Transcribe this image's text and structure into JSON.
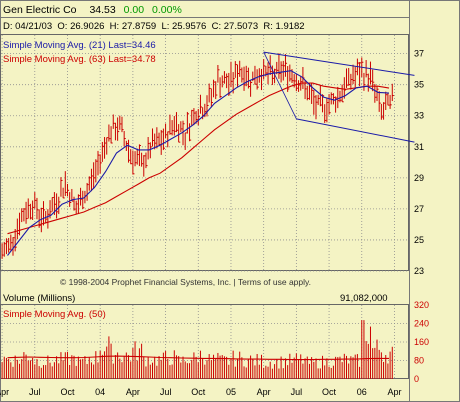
{
  "header": {
    "company": "Gen Electric Co",
    "last": "34.53",
    "change": "0.00",
    "change_pct": "0.00%",
    "quote_line": "D: 04/21/03  O: 26.9026  H: 27.8759  L: 25.9576  C: 27.5073  R: 1.9182"
  },
  "legend": {
    "sma21": "Simple Moving Avg. (21) Last=34.46",
    "sma63": "Simple Moving Avg. (63) Last=34.78"
  },
  "copyright": "© 1998-2004 Prophet Financial Systems, Inc.  |  Terms of use apply.",
  "volume_panel": {
    "title": "Volume (Millions)",
    "sma_label": "Simple Moving Avg. (50)",
    "last_value": "91,082,000"
  },
  "colors": {
    "background": "#f4f3c4",
    "price_bars": "#cc0000",
    "sma21": "#1a1aa8",
    "sma63": "#cc0000",
    "channel": "#1a1aa8",
    "volume_bars": "#cc0000",
    "volume_sma": "#cc0000",
    "text_blue": "#1a1aa8",
    "text_red": "#cc0000",
    "grid": "#8e8e8e"
  },
  "chart_data": [
    {
      "type": "ohlc",
      "title": "Gen Electric Co",
      "y_ticks": [
        23,
        25,
        27,
        29,
        31,
        33,
        35,
        37
      ],
      "ylim": [
        23,
        38.2
      ],
      "x_tick_labels": [
        "Apr",
        "Jul",
        "Oct",
        "04",
        "Apr",
        "Jul",
        "Oct",
        "05",
        "Apr",
        "Jul",
        "Oct",
        "06",
        "Apr"
      ],
      "grid": true,
      "x": [
        "2003-04",
        "2003-05",
        "2003-06",
        "2003-07",
        "2003-08",
        "2003-09",
        "2003-10",
        "2003-11",
        "2003-12",
        "2004-01",
        "2004-02",
        "2004-03",
        "2004-04",
        "2004-05",
        "2004-06",
        "2004-07",
        "2004-08",
        "2004-09",
        "2004-10",
        "2004-11",
        "2004-12",
        "2005-01",
        "2005-02",
        "2005-03",
        "2005-04",
        "2005-05",
        "2005-06",
        "2005-07",
        "2005-08",
        "2005-09",
        "2005-10",
        "2005-11",
        "2005-12",
        "2006-01",
        "2006-02",
        "2006-03"
      ],
      "close": [
        24.8,
        26.5,
        27.4,
        26.3,
        27.3,
        28.6,
        27.0,
        28.2,
        29.8,
        31.9,
        32.3,
        30.5,
        29.8,
        31.1,
        31.4,
        32.6,
        31.9,
        33.3,
        33.7,
        35.3,
        35.1,
        36.0,
        35.3,
        35.8,
        35.6,
        36.0,
        35.6,
        34.8,
        33.6,
        33.7,
        34.2,
        35.3,
        35.8,
        35.5,
        33.2,
        33.9
      ],
      "sma21": [
        24.0,
        24.9,
        25.8,
        26.3,
        26.6,
        27.3,
        27.6,
        27.7,
        28.4,
        29.4,
        30.6,
        31.1,
        30.8,
        30.8,
        31.1,
        31.5,
        31.9,
        32.4,
        33.0,
        33.8,
        34.3,
        34.8,
        35.2,
        35.5,
        35.7,
        35.8,
        35.9,
        35.5,
        34.8,
        34.2,
        34.0,
        34.3,
        34.8,
        34.9,
        34.5,
        34.46
      ],
      "sma63": [
        25.4,
        25.6,
        25.8,
        26.0,
        26.2,
        26.4,
        26.6,
        26.8,
        27.1,
        27.4,
        27.8,
        28.2,
        28.6,
        29.0,
        29.3,
        29.8,
        30.3,
        30.9,
        31.5,
        32.1,
        32.6,
        33.1,
        33.5,
        33.9,
        34.3,
        34.6,
        34.9,
        35.1,
        35.1,
        34.9,
        34.8,
        34.7,
        34.8,
        34.9,
        34.9,
        34.78
      ],
      "channel_upper": {
        "from": [
          "2005-04",
          37.1
        ],
        "to": [
          "2006-04",
          35.6
        ]
      },
      "channel_lower": {
        "from": [
          "2005-07",
          32.8
        ],
        "to": [
          "2006-04",
          31.3
        ]
      }
    },
    {
      "type": "bar",
      "title": "Volume (Millions)",
      "y_ticks": [
        0,
        40,
        80,
        120,
        160,
        200,
        240,
        280,
        320
      ],
      "ylim": [
        0,
        320
      ],
      "x": [
        "2003-04",
        "2003-05",
        "2003-06",
        "2003-07",
        "2003-08",
        "2003-09",
        "2003-10",
        "2003-11",
        "2003-12",
        "2004-01",
        "2004-02",
        "2004-03",
        "2004-04",
        "2004-05",
        "2004-06",
        "2004-07",
        "2004-08",
        "2004-09",
        "2004-10",
        "2004-11",
        "2004-12",
        "2005-01",
        "2005-02",
        "2005-03",
        "2005-04",
        "2005-05",
        "2005-06",
        "2005-07",
        "2005-08",
        "2005-09",
        "2005-10",
        "2005-11",
        "2005-12",
        "2006-01",
        "2006-02",
        "2006-03"
      ],
      "values": [
        95,
        90,
        110,
        85,
        80,
        90,
        95,
        80,
        100,
        150,
        120,
        110,
        130,
        95,
        90,
        100,
        85,
        95,
        110,
        90,
        85,
        95,
        90,
        85,
        80,
        80,
        85,
        90,
        75,
        80,
        85,
        90,
        85,
        230,
        140,
        120
      ],
      "sma50": [
        92,
        94,
        95,
        94,
        93,
        92,
        92,
        93,
        95,
        98,
        99,
        98,
        97,
        95,
        93,
        92,
        91,
        90,
        89,
        89,
        88,
        87,
        86,
        86,
        85,
        85,
        84,
        84,
        84,
        85,
        85,
        86,
        86,
        88,
        89,
        89
      ]
    }
  ]
}
